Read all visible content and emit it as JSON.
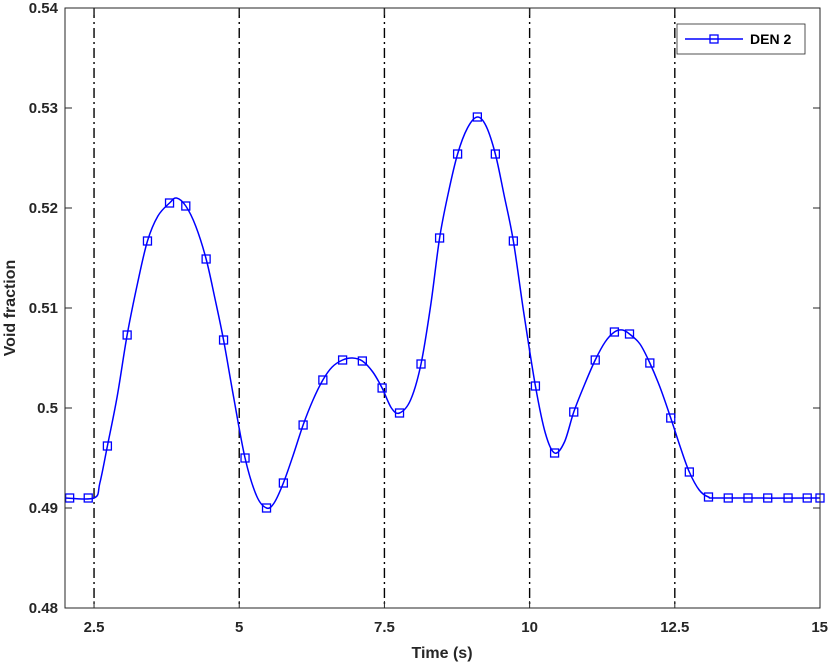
{
  "chart_data": {
    "type": "line",
    "xlabel": "Time (s)",
    "ylabel": "Void fraction",
    "xlim": [
      2,
      15
    ],
    "ylim": [
      0.48,
      0.54
    ],
    "xticks": [
      2.5,
      5,
      7.5,
      10,
      12.5,
      15
    ],
    "xtick_labels": [
      "2.5",
      "5",
      "7.5",
      "10",
      "12.5",
      "15"
    ],
    "yticks": [
      0.48,
      0.49,
      0.5,
      0.51,
      0.52,
      0.53,
      0.54
    ],
    "ytick_labels": [
      "0.48",
      "0.49",
      "0.5",
      "0.51",
      "0.52",
      "0.53",
      "0.54"
    ],
    "grid": false,
    "legend_position": "top-right",
    "vertical_lines": [
      2.5,
      5,
      7.5,
      10,
      12.5
    ],
    "series": [
      {
        "name": "DEN 2",
        "color": "#0000ff",
        "marker": "square",
        "markers": [
          [
            2.08,
            0.491
          ],
          [
            2.4,
            0.491
          ],
          [
            2.73,
            0.4962
          ],
          [
            3.07,
            0.5073
          ],
          [
            3.42,
            0.5167
          ],
          [
            3.8,
            0.5205
          ],
          [
            4.08,
            0.5202
          ],
          [
            4.43,
            0.5149
          ],
          [
            4.73,
            0.5068
          ],
          [
            5.1,
            0.495
          ],
          [
            5.47,
            0.49
          ],
          [
            5.76,
            0.4925
          ],
          [
            6.1,
            0.4983
          ],
          [
            6.44,
            0.5028
          ],
          [
            6.78,
            0.5048
          ],
          [
            7.12,
            0.5047
          ],
          [
            7.46,
            0.502
          ],
          [
            7.76,
            0.4995
          ],
          [
            8.13,
            0.5044
          ],
          [
            8.45,
            0.517
          ],
          [
            8.76,
            0.5254
          ],
          [
            9.1,
            0.5291
          ],
          [
            9.41,
            0.5254
          ],
          [
            9.72,
            0.5167
          ],
          [
            10.1,
            0.5022
          ],
          [
            10.43,
            0.4955
          ],
          [
            10.76,
            0.4996
          ],
          [
            11.13,
            0.5048
          ],
          [
            11.46,
            0.5076
          ],
          [
            11.72,
            0.5074
          ],
          [
            12.07,
            0.5045
          ],
          [
            12.43,
            0.499
          ],
          [
            12.75,
            0.4936
          ],
          [
            13.08,
            0.4911
          ],
          [
            13.42,
            0.491
          ],
          [
            13.76,
            0.491
          ],
          [
            14.1,
            0.491
          ],
          [
            14.45,
            0.491
          ],
          [
            14.78,
            0.491
          ],
          [
            15.0,
            0.491
          ]
        ],
        "curve": [
          [
            2.0,
            0.491
          ],
          [
            2.5,
            0.491
          ],
          [
            2.6,
            0.4925
          ],
          [
            2.73,
            0.4962
          ],
          [
            2.9,
            0.5012
          ],
          [
            3.07,
            0.5073
          ],
          [
            3.25,
            0.5125
          ],
          [
            3.42,
            0.5167
          ],
          [
            3.6,
            0.5192
          ],
          [
            3.8,
            0.5205
          ],
          [
            3.92,
            0.521
          ],
          [
            4.08,
            0.5202
          ],
          [
            4.25,
            0.5182
          ],
          [
            4.43,
            0.5149
          ],
          [
            4.58,
            0.511
          ],
          [
            4.73,
            0.5068
          ],
          [
            4.9,
            0.5012
          ],
          [
            5.1,
            0.495
          ],
          [
            5.3,
            0.4912
          ],
          [
            5.47,
            0.49
          ],
          [
            5.6,
            0.4905
          ],
          [
            5.76,
            0.4925
          ],
          [
            5.93,
            0.4953
          ],
          [
            6.1,
            0.4983
          ],
          [
            6.27,
            0.5008
          ],
          [
            6.44,
            0.5028
          ],
          [
            6.6,
            0.5041
          ],
          [
            6.78,
            0.5048
          ],
          [
            6.95,
            0.505
          ],
          [
            7.12,
            0.5047
          ],
          [
            7.3,
            0.5036
          ],
          [
            7.46,
            0.502
          ],
          [
            7.62,
            0.5
          ],
          [
            7.76,
            0.4995
          ],
          [
            7.95,
            0.5008
          ],
          [
            8.13,
            0.5044
          ],
          [
            8.3,
            0.5104
          ],
          [
            8.45,
            0.517
          ],
          [
            8.6,
            0.5215
          ],
          [
            8.76,
            0.5254
          ],
          [
            8.93,
            0.528
          ],
          [
            9.1,
            0.5291
          ],
          [
            9.25,
            0.5282
          ],
          [
            9.41,
            0.5254
          ],
          [
            9.56,
            0.5213
          ],
          [
            9.72,
            0.5167
          ],
          [
            9.9,
            0.5095
          ],
          [
            10.1,
            0.5022
          ],
          [
            10.27,
            0.4975
          ],
          [
            10.43,
            0.4955
          ],
          [
            10.6,
            0.4966
          ],
          [
            10.76,
            0.4996
          ],
          [
            10.95,
            0.5024
          ],
          [
            11.13,
            0.5048
          ],
          [
            11.3,
            0.5066
          ],
          [
            11.46,
            0.5076
          ],
          [
            11.6,
            0.5078
          ],
          [
            11.72,
            0.5074
          ],
          [
            11.9,
            0.5064
          ],
          [
            12.07,
            0.5045
          ],
          [
            12.25,
            0.502
          ],
          [
            12.43,
            0.499
          ],
          [
            12.6,
            0.496
          ],
          [
            12.75,
            0.4936
          ],
          [
            12.92,
            0.4918
          ],
          [
            13.08,
            0.4911
          ],
          [
            13.3,
            0.491
          ],
          [
            15.0,
            0.491
          ]
        ]
      }
    ]
  }
}
